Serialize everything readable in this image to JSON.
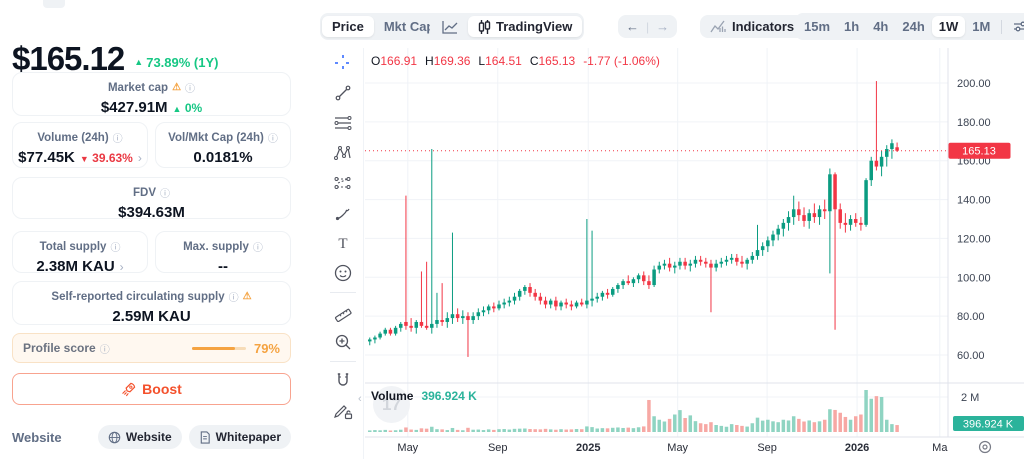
{
  "sidebar": {
    "price": "$165.12",
    "price_change": "73.89% (1Y)",
    "stats": {
      "market_cap": {
        "label": "Market cap",
        "value": "$427.91M",
        "change": "0%"
      },
      "volume_24h": {
        "label": "Volume (24h)",
        "value": "$77.45K",
        "change": "39.63%"
      },
      "vol_mkt_cap": {
        "label": "Vol/Mkt Cap (24h)",
        "value": "0.0181%"
      },
      "fdv": {
        "label": "FDV",
        "value": "$394.63M"
      },
      "total_supply": {
        "label": "Total supply",
        "value": "2.38M KAU"
      },
      "max_supply": {
        "label": "Max. supply",
        "value": "--"
      },
      "circulating_supply": {
        "label": "Self-reported circulating supply",
        "value": "2.59M KAU"
      }
    },
    "profile_score": {
      "label": "Profile score",
      "percent": 79,
      "percent_label": "79%"
    },
    "boost_label": "Boost",
    "links": {
      "section_label": "Website",
      "website_label": "Website",
      "whitepaper_label": "Whitepaper"
    }
  },
  "header": {
    "price_tab": "Price",
    "mktcap_tab": "Mkt Cap",
    "tradingview_label": "TradingView",
    "indicators_label": "Indicators",
    "timeframes": [
      "15m",
      "1h",
      "4h",
      "24h",
      "1W",
      "1M"
    ],
    "selected_timeframe": "1W"
  },
  "ohlc": {
    "o_label": "O",
    "o": "166.91",
    "h_label": "H",
    "h": "169.36",
    "l_label": "L",
    "l": "164.51",
    "c_label": "C",
    "c": "165.13",
    "change": "-1.77 (-1.06%)"
  },
  "volume_row": {
    "label": "Volume",
    "value": "396.924 K"
  },
  "watermark_text": "17",
  "colors": {
    "up": "#0a9c81",
    "down": "#f23645",
    "vol_up": "#8fd4c2",
    "vol_down": "#f7a8a4",
    "grid": "#f0f3f7",
    "axis_border": "#e0e3eb",
    "axis_text": "#3b4352",
    "badge_red": "#f23645",
    "badge_teal": "#2bb39b",
    "accent_green": "#16c784",
    "accent_red": "#ea3943",
    "orange": "#f5a341",
    "boost": "#f4512c",
    "blue": "#2962ff"
  },
  "chart_data": {
    "type": "candlestick",
    "interval": "1W",
    "price_axis": {
      "ticks": [
        200,
        180,
        160,
        140,
        120,
        100,
        80,
        60
      ],
      "tick_labels": [
        "200.00",
        "180.00",
        "160.00",
        "140.00",
        "120.00",
        "100.00",
        "80.00",
        "60.00"
      ],
      "last_price": 165.13,
      "last_price_label": "165.13"
    },
    "x_ticks": [
      {
        "label": "May",
        "i": 7.7,
        "bold": false
      },
      {
        "label": "Sep",
        "i": 25.1,
        "bold": false
      },
      {
        "label": "2025",
        "i": 42.6,
        "bold": true
      },
      {
        "label": "May",
        "i": 59.9,
        "bold": false
      },
      {
        "label": "Sep",
        "i": 77.2,
        "bold": false
      },
      {
        "label": "2026",
        "i": 94.6,
        "bold": true
      },
      {
        "label": "Ma",
        "i": 110.6,
        "bold": false
      }
    ],
    "volume_axis": {
      "scale_label": "2 M",
      "scale_value_k": 2000,
      "last_volume_label": "396.924 K",
      "last_volume_k": 396.924
    },
    "candles_note": "weekly OHLCV, volume in thousands [o,h,l,c,v]",
    "candles": [
      [
        67,
        69,
        65,
        68,
        90
      ],
      [
        68,
        70,
        66,
        69,
        110
      ],
      [
        69,
        72,
        68,
        71,
        95
      ],
      [
        71,
        74,
        70,
        73,
        120
      ],
      [
        73,
        74,
        70,
        71,
        85
      ],
      [
        71,
        75,
        70,
        74,
        100
      ],
      [
        74,
        77,
        72,
        76,
        130
      ],
      [
        77,
        142,
        73,
        75,
        260
      ],
      [
        75,
        79,
        72,
        74,
        140
      ],
      [
        74,
        78,
        71,
        77,
        120
      ],
      [
        77,
        103,
        74,
        75,
        210
      ],
      [
        75,
        108,
        73,
        74,
        190
      ],
      [
        74,
        166,
        71,
        76,
        300
      ],
      [
        76,
        92,
        74,
        78,
        160
      ],
      [
        78,
        97,
        75,
        77,
        150
      ],
      [
        77,
        82,
        74,
        79,
        110
      ],
      [
        79,
        123,
        76,
        81,
        230
      ],
      [
        81,
        84,
        77,
        79,
        120
      ],
      [
        79,
        83,
        76,
        80,
        100
      ],
      [
        80,
        82,
        59,
        78,
        240
      ],
      [
        78,
        82,
        76,
        80,
        130
      ],
      [
        80,
        84,
        78,
        82,
        140
      ],
      [
        82,
        85,
        80,
        83,
        110
      ],
      [
        83,
        86,
        81,
        85,
        150
      ],
      [
        85,
        87,
        82,
        84,
        120
      ],
      [
        84,
        88,
        83,
        86,
        160
      ],
      [
        86,
        89,
        84,
        87,
        170
      ],
      [
        87,
        90,
        85,
        88,
        140
      ],
      [
        88,
        92,
        86,
        90,
        180
      ],
      [
        90,
        94,
        88,
        93,
        190
      ],
      [
        93,
        96,
        91,
        95,
        200
      ],
      [
        95,
        97,
        90,
        92,
        170
      ],
      [
        92,
        94,
        88,
        90,
        160
      ],
      [
        90,
        92,
        86,
        88,
        150
      ],
      [
        88,
        90,
        84,
        86,
        180
      ],
      [
        86,
        89,
        84,
        88,
        150
      ],
      [
        88,
        90,
        83,
        85,
        130
      ],
      [
        85,
        88,
        83,
        87,
        160
      ],
      [
        87,
        89,
        84,
        86,
        140
      ],
      [
        86,
        88,
        83,
        85,
        150
      ],
      [
        85,
        88,
        84,
        87,
        170
      ],
      [
        87,
        89,
        85,
        86,
        160
      ],
      [
        86,
        130,
        84,
        88,
        320
      ],
      [
        88,
        124,
        85,
        89,
        280
      ],
      [
        89,
        92,
        87,
        90,
        200
      ],
      [
        90,
        93,
        88,
        92,
        220
      ],
      [
        92,
        94,
        89,
        91,
        210
      ],
      [
        91,
        95,
        90,
        94,
        240
      ],
      [
        94,
        97,
        92,
        96,
        260
      ],
      [
        96,
        99,
        94,
        98,
        230
      ],
      [
        98,
        101,
        96,
        97,
        250
      ],
      [
        97,
        100,
        95,
        99,
        220
      ],
      [
        99,
        102,
        97,
        101,
        270
      ],
      [
        101,
        103,
        96,
        98,
        320
      ],
      [
        98,
        101,
        94,
        96,
        1830
      ],
      [
        96,
        106,
        95,
        104,
        900
      ],
      [
        104,
        108,
        102,
        106,
        700
      ],
      [
        106,
        109,
        104,
        107,
        600
      ],
      [
        107,
        110,
        103,
        105,
        750
      ],
      [
        105,
        108,
        102,
        106,
        1000
      ],
      [
        106,
        110,
        104,
        108,
        1250
      ],
      [
        108,
        110,
        104,
        106,
        800
      ],
      [
        106,
        109,
        103,
        107,
        950
      ],
      [
        107,
        111,
        105,
        109,
        620
      ],
      [
        109,
        111,
        106,
        108,
        500
      ],
      [
        108,
        110,
        105,
        107,
        450
      ],
      [
        107,
        109,
        82,
        105,
        560
      ],
      [
        105,
        109,
        103,
        107,
        400
      ],
      [
        107,
        110,
        105,
        108,
        350
      ],
      [
        108,
        111,
        106,
        109,
        300
      ],
      [
        109,
        112,
        107,
        110,
        450
      ],
      [
        110,
        112,
        106,
        108,
        400
      ],
      [
        108,
        111,
        105,
        107,
        350
      ],
      [
        107,
        110,
        104,
        109,
        310
      ],
      [
        109,
        113,
        107,
        111,
        500
      ],
      [
        111,
        127,
        109,
        114,
        820
      ],
      [
        114,
        118,
        111,
        116,
        650
      ],
      [
        116,
        121,
        113,
        119,
        700
      ],
      [
        119,
        124,
        116,
        122,
        610
      ],
      [
        122,
        127,
        119,
        125,
        560
      ],
      [
        125,
        130,
        121,
        128,
        700
      ],
      [
        128,
        134,
        124,
        131,
        660
      ],
      [
        131,
        142,
        127,
        135,
        900
      ],
      [
        135,
        139,
        129,
        132,
        750
      ],
      [
        132,
        136,
        126,
        129,
        600
      ],
      [
        129,
        135,
        125,
        133,
        660
      ],
      [
        133,
        138,
        128,
        131,
        560
      ],
      [
        131,
        137,
        127,
        135,
        610
      ],
      [
        135,
        140,
        130,
        134,
        700
      ],
      [
        134,
        156,
        102,
        153,
        1300
      ],
      [
        153,
        154,
        73,
        135,
        1260
      ],
      [
        135,
        138,
        125,
        128,
        1100
      ],
      [
        128,
        133,
        123,
        127,
        860
      ],
      [
        127,
        132,
        124,
        130,
        700
      ],
      [
        130,
        133,
        126,
        128,
        900
      ],
      [
        128,
        131,
        124,
        127,
        1000
      ],
      [
        127,
        151,
        126,
        150,
        2400
      ],
      [
        150,
        162,
        147,
        160,
        1900
      ],
      [
        160,
        201,
        155,
        157,
        2050
      ],
      [
        157,
        165,
        152,
        162,
        2000
      ],
      [
        162,
        168,
        157,
        166,
        700
      ],
      [
        166,
        171,
        161,
        169,
        450
      ],
      [
        166.91,
        169.36,
        164.51,
        165.13,
        396.924
      ]
    ]
  }
}
